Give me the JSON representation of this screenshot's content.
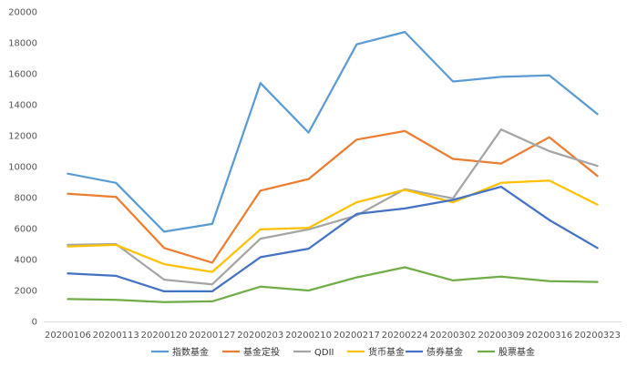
{
  "chart_data": {
    "type": "line",
    "title": "",
    "xlabel": "",
    "ylabel": "",
    "ylim": [
      0,
      20000
    ],
    "yticks": [
      "0",
      "2000",
      "4000",
      "6000",
      "8000",
      "10000",
      "12000",
      "14000",
      "16000",
      "18000",
      "20000"
    ],
    "ytick_values": [
      0,
      2000,
      4000,
      6000,
      8000,
      10000,
      12000,
      14000,
      16000,
      18000,
      20000
    ],
    "categories": [
      "20200106",
      "20200113",
      "20200120",
      "20200127",
      "20200203",
      "20200210",
      "20200217",
      "20200224",
      "20200302",
      "20200309",
      "20200316",
      "20200323"
    ],
    "grid": false,
    "legend_position": "bottom",
    "series": [
      {
        "name": "指数基金",
        "color": "#5b9bd5",
        "values": [
          9550,
          8950,
          5800,
          6300,
          15400,
          12200,
          17900,
          18700,
          15500,
          15800,
          15900,
          13400
        ]
      },
      {
        "name": "基金定投",
        "color": "#ed7d31",
        "values": [
          8250,
          8050,
          4750,
          3800,
          8450,
          9200,
          11750,
          12300,
          10500,
          10200,
          11900,
          9400
        ]
      },
      {
        "name": "QDII",
        "color": "#a5a5a5",
        "values": [
          4950,
          5000,
          2700,
          2400,
          5350,
          5950,
          6850,
          8550,
          7950,
          12400,
          11000,
          10050
        ]
      },
      {
        "name": "货币基金",
        "color": "#ffc000",
        "values": [
          4850,
          4950,
          3700,
          3200,
          5950,
          6050,
          7700,
          8500,
          7700,
          8950,
          9100,
          7550
        ]
      },
      {
        "name": "债券基金",
        "color": "#4472c4",
        "values": [
          3100,
          2950,
          1950,
          1950,
          4150,
          4700,
          6950,
          7300,
          7850,
          8700,
          6550,
          4750
        ]
      },
      {
        "name": "股票基金",
        "color": "#70ad47",
        "values": [
          1450,
          1400,
          1250,
          1300,
          2250,
          2000,
          2850,
          3500,
          2650,
          2900,
          2600,
          2550
        ]
      }
    ]
  }
}
